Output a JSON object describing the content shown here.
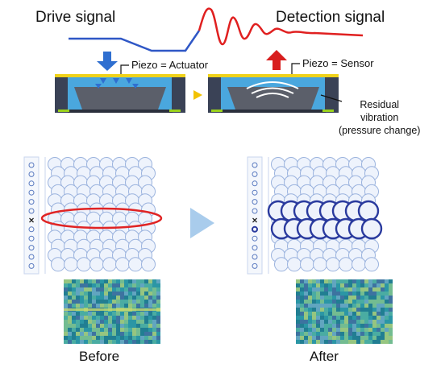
{
  "waveform": {
    "drive_label": "Drive signal",
    "detection_label": "Detection signal",
    "drive_color": "#2f57c6",
    "detection_color": "#e02020"
  },
  "actuator": {
    "label": "Piezo = Actuator",
    "arrow_color": "#2f6fd0"
  },
  "sensor": {
    "label": "Piezo = Sensor",
    "arrow_color": "#d81e1e",
    "residual_lines": [
      "Residual",
      "vibration",
      "(pressure change)"
    ]
  },
  "nozzle_panels": [
    {
      "caption": "Before",
      "highlight": "red ellipse around misfiring row",
      "highlight_color": "#e02424"
    },
    {
      "caption": "After",
      "highlight": "recovered row drawn bold",
      "highlight_color": "#2a3a9e"
    }
  ],
  "colors": {
    "nozzle_outline": "#9bb3de",
    "nozzle_fill": "#eef3fc",
    "arrow_between": "#a9ccec",
    "accent_arrow": "#f2c200"
  }
}
